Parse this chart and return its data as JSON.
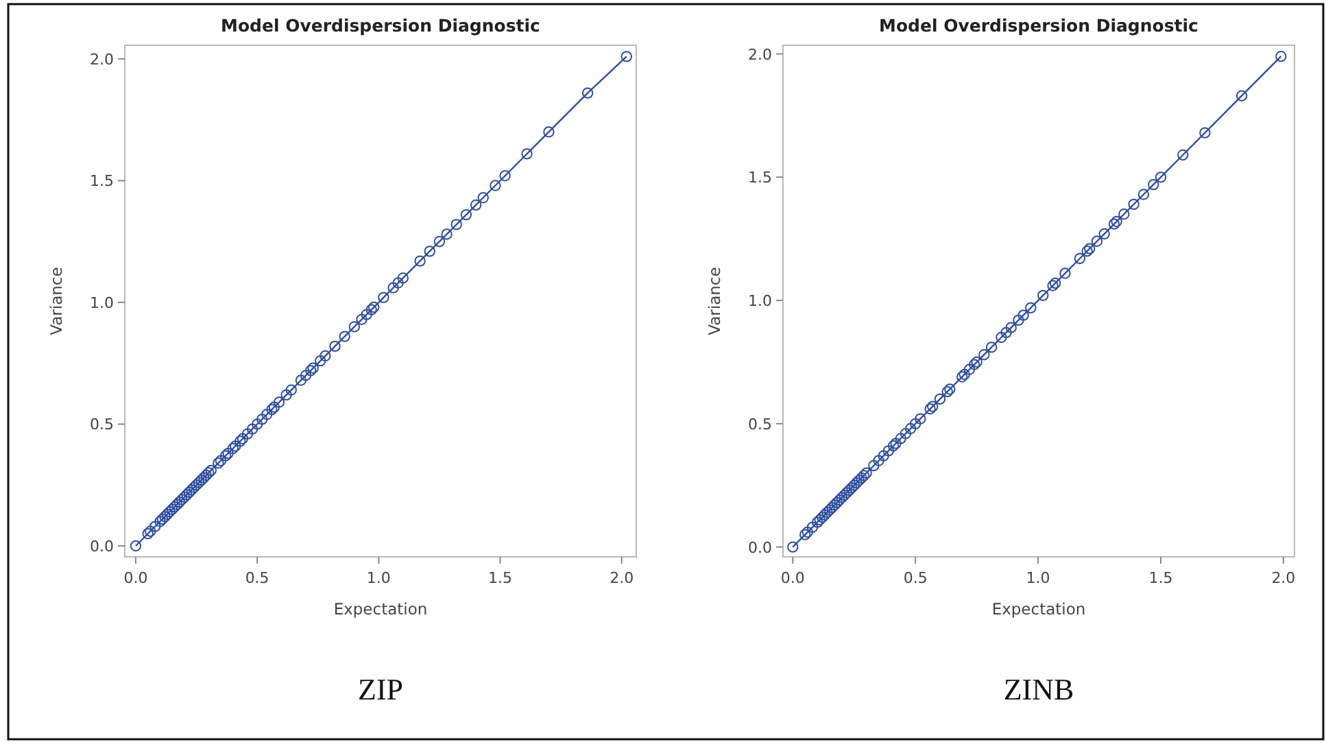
{
  "chart_data": [
    {
      "type": "line",
      "title": "Model Overdispersion Diagnostic",
      "xlabel": "Expectation",
      "ylabel": "Variance",
      "annotations": [
        "ZIP"
      ],
      "marker": "circle",
      "line_style": "solid",
      "xlim": [
        -0.045,
        2.06
      ],
      "ylim": [
        -0.045,
        2.056
      ],
      "xticks": [
        {
          "value": 0,
          "label": "0.0"
        },
        {
          "value": 0.5,
          "label": "0.5"
        },
        {
          "value": 1,
          "label": "1.0"
        },
        {
          "value": 1.5,
          "label": "1.5"
        },
        {
          "value": 2,
          "label": "2.0"
        }
      ],
      "yticks": [
        {
          "value": 0,
          "label": "0.0"
        },
        {
          "value": 0.5,
          "label": "0.5"
        },
        {
          "value": 1,
          "label": "1.0"
        },
        {
          "value": 1.5,
          "label": "1.5"
        },
        {
          "value": 2,
          "label": "2.0"
        }
      ],
      "series": [
        {
          "color": "#2f4fa0",
          "x": [
            0,
            0.05,
            0.06,
            0.08,
            0.1,
            0.11,
            0.12,
            0.13,
            0.14,
            0.15,
            0.16,
            0.17,
            0.18,
            0.19,
            0.2,
            0.21,
            0.22,
            0.23,
            0.24,
            0.25,
            0.26,
            0.27,
            0.28,
            0.29,
            0.3,
            0.31,
            0.34,
            0.35,
            0.37,
            0.38,
            0.4,
            0.41,
            0.43,
            0.44,
            0.46,
            0.48,
            0.5,
            0.52,
            0.54,
            0.56,
            0.57,
            0.59,
            0.62,
            0.64,
            0.68,
            0.7,
            0.72,
            0.73,
            0.76,
            0.78,
            0.82,
            0.86,
            0.9,
            0.93,
            0.95,
            0.97,
            0.98,
            1.02,
            1.06,
            1.08,
            1.1,
            1.17,
            1.21,
            1.25,
            1.28,
            1.32,
            1.36,
            1.4,
            1.43,
            1.48,
            1.52,
            1.61,
            1.7,
            1.86,
            2.02
          ],
          "values": [
            0,
            0.05,
            0.06,
            0.08,
            0.1,
            0.11,
            0.12,
            0.13,
            0.14,
            0.15,
            0.16,
            0.17,
            0.18,
            0.19,
            0.2,
            0.21,
            0.22,
            0.23,
            0.24,
            0.25,
            0.26,
            0.27,
            0.28,
            0.29,
            0.3,
            0.31,
            0.34,
            0.35,
            0.37,
            0.38,
            0.4,
            0.41,
            0.43,
            0.44,
            0.46,
            0.48,
            0.5,
            0.52,
            0.54,
            0.56,
            0.57,
            0.59,
            0.62,
            0.64,
            0.68,
            0.7,
            0.72,
            0.73,
            0.76,
            0.78,
            0.82,
            0.86,
            0.9,
            0.93,
            0.95,
            0.97,
            0.98,
            1.02,
            1.06,
            1.08,
            1.1,
            1.17,
            1.21,
            1.25,
            1.28,
            1.32,
            1.36,
            1.4,
            1.43,
            1.48,
            1.52,
            1.61,
            1.7,
            1.86,
            2.01
          ]
        }
      ]
    },
    {
      "type": "line",
      "title": "Model Overdispersion Diagnostic",
      "xlabel": "Expectation",
      "ylabel": "Variance",
      "annotations": [
        "ZINB"
      ],
      "marker": "circle",
      "line_style": "solid",
      "xlim": [
        -0.04,
        2.045
      ],
      "ylim": [
        -0.04,
        2.035
      ],
      "xticks": [
        {
          "value": 0,
          "label": "0.0"
        },
        {
          "value": 0.5,
          "label": "0.5"
        },
        {
          "value": 1,
          "label": "1.0"
        },
        {
          "value": 1.5,
          "label": "1.5"
        },
        {
          "value": 2,
          "label": "2.0"
        }
      ],
      "yticks": [
        {
          "value": 0,
          "label": "0.0"
        },
        {
          "value": 0.5,
          "label": "0.5"
        },
        {
          "value": 1,
          "label": "1.0"
        },
        {
          "value": 1.5,
          "label": "1.5"
        },
        {
          "value": 2,
          "label": "2.0"
        }
      ],
      "series": [
        {
          "color": "#2f4fa0",
          "x": [
            0,
            0.05,
            0.06,
            0.08,
            0.1,
            0.11,
            0.12,
            0.13,
            0.14,
            0.15,
            0.16,
            0.17,
            0.18,
            0.19,
            0.2,
            0.21,
            0.22,
            0.23,
            0.24,
            0.25,
            0.26,
            0.27,
            0.28,
            0.29,
            0.3,
            0.33,
            0.35,
            0.37,
            0.39,
            0.41,
            0.42,
            0.44,
            0.46,
            0.48,
            0.5,
            0.52,
            0.56,
            0.57,
            0.6,
            0.63,
            0.64,
            0.69,
            0.7,
            0.72,
            0.74,
            0.75,
            0.78,
            0.81,
            0.85,
            0.87,
            0.89,
            0.92,
            0.94,
            0.97,
            1.02,
            1.06,
            1.07,
            1.11,
            1.17,
            1.2,
            1.21,
            1.24,
            1.27,
            1.31,
            1.32,
            1.35,
            1.39,
            1.43,
            1.47,
            1.5,
            1.59,
            1.68,
            1.83,
            1.99
          ],
          "values": [
            0,
            0.05,
            0.06,
            0.08,
            0.1,
            0.11,
            0.12,
            0.13,
            0.14,
            0.15,
            0.16,
            0.17,
            0.18,
            0.19,
            0.2,
            0.21,
            0.22,
            0.23,
            0.24,
            0.25,
            0.26,
            0.27,
            0.28,
            0.29,
            0.3,
            0.33,
            0.35,
            0.37,
            0.39,
            0.41,
            0.42,
            0.44,
            0.46,
            0.48,
            0.5,
            0.52,
            0.56,
            0.57,
            0.6,
            0.63,
            0.64,
            0.69,
            0.7,
            0.72,
            0.74,
            0.75,
            0.78,
            0.81,
            0.85,
            0.87,
            0.89,
            0.92,
            0.94,
            0.97,
            1.02,
            1.06,
            1.07,
            1.11,
            1.17,
            1.2,
            1.21,
            1.24,
            1.27,
            1.31,
            1.32,
            1.35,
            1.39,
            1.43,
            1.47,
            1.5,
            1.59,
            1.68,
            1.83,
            1.99
          ]
        }
      ]
    }
  ]
}
